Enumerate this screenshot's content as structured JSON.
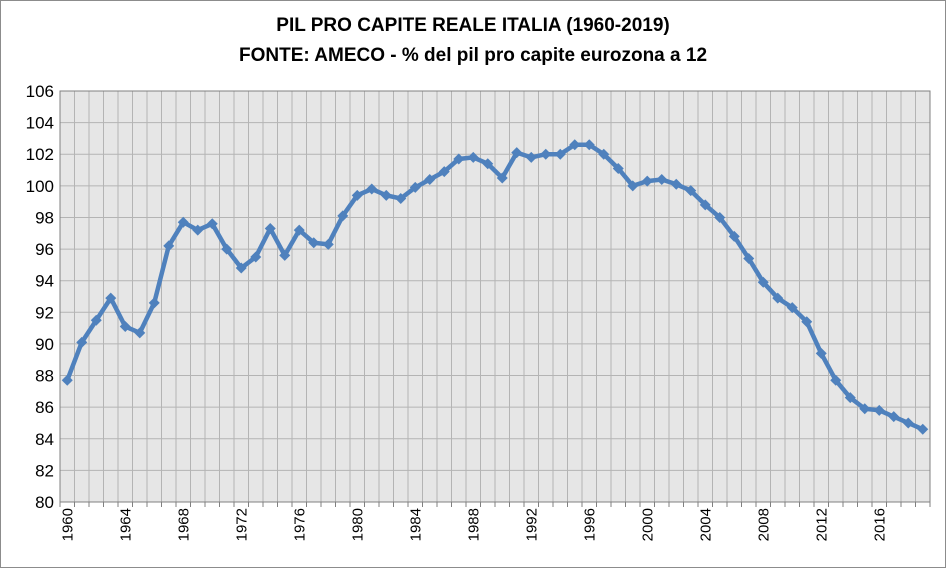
{
  "chart_data": {
    "type": "line",
    "title_lines": [
      "PIL PRO CAPITE REALE ITALIA (1960-2019)",
      "FONTE: AMECO - % del pil pro capite eurozona a 12"
    ],
    "xlabel": "",
    "ylabel": "",
    "ylim": [
      80,
      106
    ],
    "y_ticks": [
      80,
      82,
      84,
      86,
      88,
      90,
      92,
      94,
      96,
      98,
      100,
      102,
      104,
      106
    ],
    "xlim": [
      1960,
      2019
    ],
    "x_tick_labels": [
      "1960",
      "1964",
      "1968",
      "1972",
      "1976",
      "1980",
      "1984",
      "1988",
      "1992",
      "1996",
      "2000",
      "2004",
      "2008",
      "2012",
      "2016"
    ],
    "grid": true,
    "legend": "none",
    "colors": {
      "line": "#4f81bd",
      "plot_background": "#e6e6e6",
      "gridline": "#b4b4b4"
    },
    "series": [
      {
        "x": [
          1960,
          1961,
          1962,
          1963,
          1964,
          1965,
          1966,
          1967,
          1968,
          1969,
          1970,
          1971,
          1972,
          1973,
          1974,
          1975,
          1976,
          1977,
          1978,
          1979,
          1980,
          1981,
          1982,
          1983,
          1984,
          1985,
          1986,
          1987,
          1988,
          1989,
          1990,
          1991,
          1992,
          1993,
          1994,
          1995,
          1996,
          1997,
          1998,
          1999,
          2000,
          2001,
          2002,
          2003,
          2004,
          2005,
          2006,
          2007,
          2008,
          2009,
          2010,
          2011,
          2012,
          2013,
          2014,
          2015,
          2016,
          2017,
          2018,
          2019
        ],
        "values": [
          87.7,
          90.1,
          91.5,
          92.9,
          91.1,
          90.7,
          92.6,
          96.2,
          97.7,
          97.2,
          97.6,
          96.0,
          94.8,
          95.5,
          97.3,
          95.6,
          97.2,
          96.4,
          96.3,
          98.1,
          99.4,
          99.8,
          99.4,
          99.2,
          99.9,
          100.4,
          100.9,
          101.7,
          101.8,
          101.4,
          100.5,
          102.1,
          101.8,
          102.0,
          102.0,
          102.6,
          102.6,
          102.0,
          101.1,
          100.0,
          100.3,
          100.4,
          100.1,
          99.7,
          98.8,
          98.0,
          96.8,
          95.4,
          93.9,
          92.9,
          92.3,
          91.4,
          89.4,
          87.7,
          86.6,
          85.9,
          85.8,
          85.4,
          85.0,
          84.6
        ]
      }
    ]
  }
}
